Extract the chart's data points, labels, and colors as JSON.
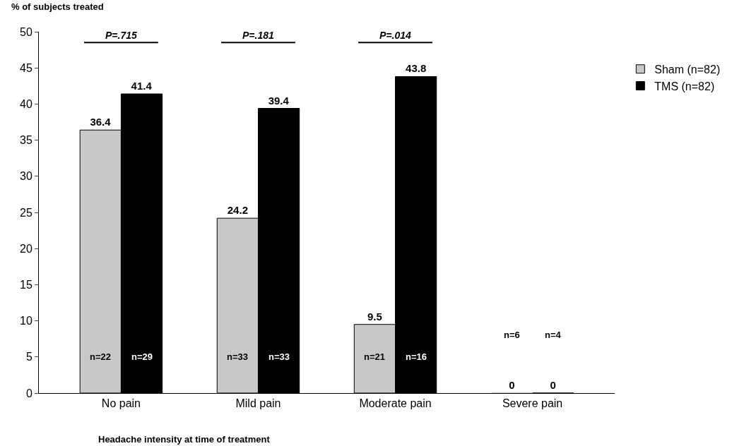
{
  "chart_data": {
    "type": "bar",
    "ylabel": "% of subjects treated",
    "xlabel": "Headache intensity at time of treatment",
    "categories": [
      "No pain",
      "Mild pain",
      "Moderate pain",
      "Severe pain"
    ],
    "series": [
      {
        "name": "Sham (n=82)",
        "color": "#c8c8c8",
        "values": [
          36.4,
          24.2,
          9.5,
          0
        ]
      },
      {
        "name": "TMS (n=82)",
        "color": "#000000",
        "values": [
          41.4,
          39.4,
          43.8,
          0
        ]
      }
    ],
    "ylim": [
      0,
      50
    ],
    "yticks": [
      0,
      5,
      10,
      15,
      20,
      25,
      30,
      35,
      40,
      45,
      50
    ],
    "data_labels": true,
    "legend": "top right",
    "annotations": [
      "P=.715",
      "P=.181",
      "P=.014",
      "n=22",
      "n=29",
      "n=33",
      "n=33",
      "n=21",
      "n=16",
      "n=6",
      "n=4"
    ]
  }
}
